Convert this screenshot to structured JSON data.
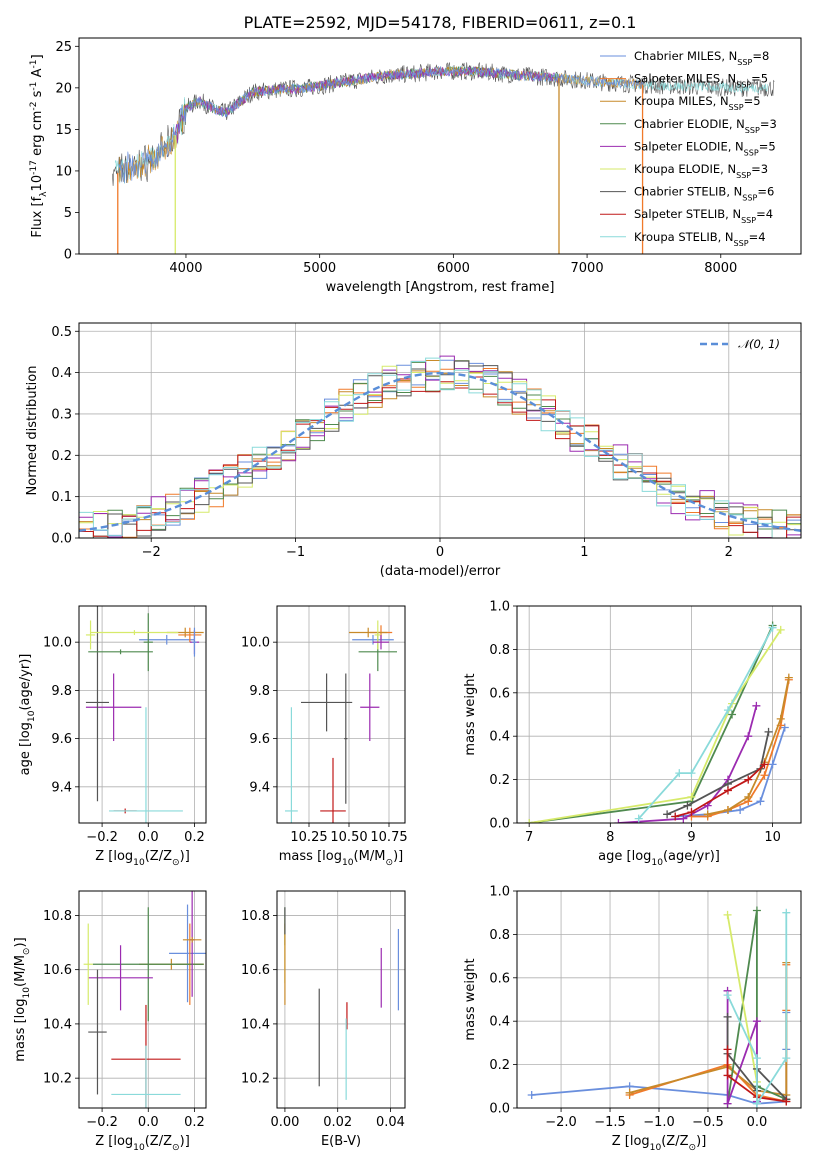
{
  "title": "PLATE=2592, MJD=54178, FIBERID=0611, z=0.1",
  "series_colors": {
    "Chabrier MILES": "#6a8fdd",
    "Salpeter MILES": "#f07a2a",
    "Kroupa MILES": "#c78a2a",
    "Chabrier ELODIE": "#4f8a4f",
    "Salpeter ELODIE": "#9b2bb0",
    "Kroupa ELODIE": "#d6ea6a",
    "Chabrier STELIB": "#555555",
    "Salpeter STELIB": "#c01818",
    "Kroupa STELIB": "#8adada"
  },
  "chart_data": [
    {
      "id": "spectrum",
      "type": "line",
      "title": "PLATE=2592, MJD=54178, FIBERID=0611, z=0.1",
      "xlabel": "wavelength [Angstrom, rest frame]",
      "ylabel": "Flux [f$_\\lambda$10$^{-17}$ erg cm$^{-2}$ s$^{-1}$ A$^{-1}$]",
      "xlim": [
        3200,
        8600
      ],
      "ylim": [
        0,
        26
      ],
      "xticks": [
        4000,
        5000,
        6000,
        7000,
        8000
      ],
      "yticks": [
        0,
        5,
        10,
        15,
        20,
        25
      ],
      "grid": false,
      "legend_position": "top-right",
      "legend": [
        "Chabrier MILES, N$_{SSP}$=8",
        "Salpeter MILES, N$_{SSP}$=5",
        "Kroupa MILES, N$_{SSP}$=5",
        "Chabrier ELODIE, N$_{SSP}$=3",
        "Salpeter ELODIE, N$_{SSP}$=5",
        "Kroupa ELODIE, N$_{SSP}$=3",
        "Chabrier STELIB, N$_{SSP}$=6",
        "Salpeter STELIB, N$_{SSP}$=4",
        "Kroupa STELIB, N$_{SSP}$=4"
      ],
      "continuum": {
        "x": [
          3450,
          3600,
          3700,
          3800,
          3900,
          4000,
          4100,
          4200,
          4300,
          4500,
          4700,
          4900,
          5100,
          5300,
          5500,
          5700,
          5900,
          6100,
          6300,
          6500,
          6700,
          6900,
          7100,
          7300,
          7500,
          7700,
          7900,
          8100,
          8300
        ],
        "y": [
          9.5,
          10.5,
          11,
          12,
          13.5,
          17.5,
          18.5,
          17.5,
          17,
          19.5,
          19.8,
          20,
          20.5,
          21,
          21.5,
          21.7,
          22,
          22,
          21.8,
          21.5,
          21.3,
          21,
          20.7,
          20.5,
          20.3,
          20.2,
          20.1,
          20,
          20
        ]
      },
      "drops": [
        {
          "series": "Salpeter MILES",
          "x": 3490
        },
        {
          "series": "Kroupa ELODIE",
          "x": 3920
        },
        {
          "series": "Kroupa MILES",
          "x": 6790
        },
        {
          "series": "Salpeter MILES",
          "x": 7415
        }
      ]
    },
    {
      "id": "residuals",
      "type": "histogram",
      "xlabel": "(data-model)/error",
      "ylabel": "Normed distribution",
      "xlim": [
        -2.5,
        2.5
      ],
      "ylim": [
        0,
        0.52
      ],
      "xticks": [
        -2,
        -1,
        0,
        1,
        2
      ],
      "yticks": [
        0.0,
        0.1,
        0.2,
        0.3,
        0.4,
        0.5
      ],
      "grid": true,
      "legend_position": "top-right",
      "legend": [
        "$\\mathcal{N}(0, 1)$"
      ],
      "bin_width": 0.1
    },
    {
      "id": "age-vs-Z",
      "type": "scatter",
      "xlabel": "Z [log$_{10}$(Z/Z$_\\odot$)]",
      "ylabel": "age  [log$_{10}$(age/yr)]",
      "xlim": [
        -0.3,
        0.25
      ],
      "ylim": [
        9.25,
        10.15
      ],
      "xticks": [
        -0.2,
        0.0,
        0.2
      ],
      "yticks": [
        9.4,
        9.6,
        9.8,
        10.0
      ],
      "grid": true,
      "points": [
        {
          "series": "Chabrier MILES",
          "x": 0.08,
          "y": 10.01,
          "xerr": 0.12,
          "yerr": 0.02
        },
        {
          "series": "Salpeter MILES",
          "x": 0.18,
          "y": 10.03,
          "xerr": 0.05,
          "yerr": 0.03
        },
        {
          "series": "Kroupa MILES",
          "x": 0.16,
          "y": 10.04,
          "xerr": 0.08,
          "yerr": 0.02
        },
        {
          "series": "Chabrier ELODIE",
          "x": 0.0,
          "y": 10.0,
          "xerr": 0.02,
          "yerr": 0.12
        },
        {
          "series": "Salpeter ELODIE",
          "x": -0.15,
          "y": 9.73,
          "xerr": 0.12,
          "yerr": 0.14
        },
        {
          "series": "Kroupa ELODIE",
          "x": -0.25,
          "y": 10.03,
          "xerr": 0.02,
          "yerr": 0.06
        },
        {
          "series": "Chabrier STELIB",
          "x": -0.22,
          "y": 9.75,
          "xerr": 0.05,
          "yerr": 0.41
        },
        {
          "series": "Salpeter STELIB",
          "x": -0.1,
          "y": 9.3,
          "xerr": 0.05,
          "yerr": 0.01
        },
        {
          "series": "Kroupa STELIB",
          "x": -0.01,
          "y": 9.3,
          "xerr": 0.16,
          "yerr": 0.43
        },
        {
          "series": "Chabrier ELODIE",
          "x": -0.12,
          "y": 9.96,
          "xerr": 0.14,
          "yerr": 0.01
        },
        {
          "series": "Salpeter ELODIE",
          "x": 0.2,
          "y": 10.0,
          "xerr": 0.02,
          "yerr": 0.05
        },
        {
          "series": "Kroupa ELODIE",
          "x": -0.06,
          "y": 10.04,
          "xerr": 0.19,
          "yerr": 0.01
        },
        {
          "series": "Chabrier MILES",
          "x": 0.2,
          "y": 10.0,
          "xerr": 0.01,
          "yerr": 0.06
        }
      ]
    },
    {
      "id": "age-vs-mass",
      "type": "scatter",
      "xlabel": "mass [log$_{10}$(M/M$_\\odot$)]",
      "ylabel": "",
      "xlim": [
        10.05,
        10.85
      ],
      "ylim": [
        9.25,
        10.15
      ],
      "xticks": [
        10.25,
        10.5,
        10.75
      ],
      "yticks": [
        9.4,
        9.6,
        9.8,
        10.0
      ],
      "grid": true,
      "points": [
        {
          "series": "Chabrier MILES",
          "x": 10.65,
          "y": 10.01,
          "xerr": 0.13,
          "yerr": 0.02
        },
        {
          "series": "Salpeter MILES",
          "x": 10.7,
          "y": 10.04,
          "xerr": 0.07,
          "yerr": 0.03
        },
        {
          "series": "Kroupa MILES",
          "x": 10.62,
          "y": 10.04,
          "xerr": 0.12,
          "yerr": 0.02
        },
        {
          "series": "Chabrier ELODIE",
          "x": 10.68,
          "y": 9.96,
          "xerr": 0.12,
          "yerr": 0.08
        },
        {
          "series": "Salpeter ELODIE",
          "x": 10.63,
          "y": 9.73,
          "xerr": 0.06,
          "yerr": 0.14
        },
        {
          "series": "Kroupa ELODIE",
          "x": 10.68,
          "y": 10.03,
          "xerr": 0.02,
          "yerr": 0.06
        },
        {
          "series": "Chabrier STELIB",
          "x": 10.36,
          "y": 9.75,
          "xerr": 0.16,
          "yerr": 0.12
        },
        {
          "series": "Salpeter STELIB",
          "x": 10.4,
          "y": 9.3,
          "xerr": 0.08,
          "yerr": 0.22
        },
        {
          "series": "Kroupa STELIB",
          "x": 10.14,
          "y": 9.3,
          "xerr": 0.04,
          "yerr": 0.43
        },
        {
          "series": "Chabrier STELIB",
          "x": 10.48,
          "y": 9.6,
          "xerr": 0.01,
          "yerr": 0.27
        },
        {
          "series": "Salpeter ELODIE",
          "x": 10.7,
          "y": 10.0,
          "xerr": 0.05,
          "yerr": 0.03
        }
      ]
    },
    {
      "id": "mass-weight-vs-age",
      "type": "line",
      "xlabel": "age  [log$_{10}$(age/yr)]",
      "ylabel": "mass weight",
      "xlim": [
        6.85,
        10.35
      ],
      "ylim": [
        0,
        1
      ],
      "xticks": [
        7,
        8,
        9,
        10
      ],
      "yticks": [
        0.0,
        0.2,
        0.4,
        0.6,
        0.8,
        1.0
      ],
      "grid": true,
      "series": [
        {
          "name": "Chabrier MILES",
          "x": [
            8.8,
            9.2,
            9.6,
            9.85,
            10.0,
            10.15
          ],
          "y": [
            0.03,
            0.04,
            0.06,
            0.1,
            0.27,
            0.44
          ]
        },
        {
          "name": "Salpeter MILES",
          "x": [
            9.0,
            9.2,
            9.45,
            9.7,
            9.9,
            10.1,
            10.2
          ],
          "y": [
            0.03,
            0.03,
            0.06,
            0.1,
            0.22,
            0.45,
            0.66
          ]
        },
        {
          "name": "Kroupa MILES",
          "x": [
            9.2,
            9.45,
            9.7,
            9.9,
            10.1,
            10.2
          ],
          "y": [
            0.04,
            0.06,
            0.12,
            0.28,
            0.48,
            0.67
          ]
        },
        {
          "name": "Chabrier ELODIE",
          "x": [
            7.0,
            9.0,
            9.5,
            10.0
          ],
          "y": [
            0.0,
            0.1,
            0.5,
            0.91
          ]
        },
        {
          "name": "Salpeter ELODIE",
          "x": [
            8.1,
            8.9,
            9.2,
            9.45,
            9.7,
            9.8
          ],
          "y": [
            0.0,
            0.02,
            0.08,
            0.2,
            0.4,
            0.54
          ]
        },
        {
          "name": "Kroupa ELODIE",
          "x": [
            7.0,
            9.0,
            9.5,
            10.1
          ],
          "y": [
            0.0,
            0.12,
            0.55,
            0.89
          ]
        },
        {
          "name": "Chabrier STELIB",
          "x": [
            8.7,
            8.95,
            9.45,
            9.85,
            9.95
          ],
          "y": [
            0.04,
            0.08,
            0.18,
            0.25,
            0.42
          ]
        },
        {
          "name": "Salpeter STELIB",
          "x": [
            8.8,
            9.0,
            9.45,
            9.7,
            9.9
          ],
          "y": [
            0.03,
            0.05,
            0.15,
            0.2,
            0.27
          ]
        },
        {
          "name": "Kroupa STELIB",
          "x": [
            8.35,
            8.85,
            9.0,
            9.45,
            10.0
          ],
          "y": [
            0.02,
            0.23,
            0.23,
            0.52,
            0.9
          ]
        }
      ]
    },
    {
      "id": "mass-vs-Z",
      "type": "scatter",
      "xlabel": "Z [log$_{10}$(Z/Z$_\\odot$)]",
      "ylabel": "mass [log$_{10}$(M/M$_\\odot$)]",
      "xlim": [
        -0.3,
        0.25
      ],
      "ylim": [
        10.09,
        10.89
      ],
      "xticks": [
        -0.2,
        0.0,
        0.2
      ],
      "yticks": [
        10.2,
        10.4,
        10.6,
        10.8
      ],
      "grid": true,
      "points": [
        {
          "series": "Chabrier MILES",
          "x": 0.17,
          "y": 10.66,
          "xerr": 0.08,
          "yerr": 0.18
        },
        {
          "series": "Salpeter MILES",
          "x": 0.18,
          "y": 10.62,
          "xerr": 0.06,
          "yerr": 0.15
        },
        {
          "series": "Kroupa MILES",
          "x": 0.1,
          "y": 10.62,
          "xerr": 0.14,
          "yerr": 0.02
        },
        {
          "series": "Chabrier ELODIE",
          "x": 0.0,
          "y": 10.62,
          "xerr": 0.24,
          "yerr": 0.21
        },
        {
          "series": "Salpeter ELODIE",
          "x": -0.12,
          "y": 10.57,
          "xerr": 0.14,
          "yerr": 0.12
        },
        {
          "series": "Kroupa ELODIE",
          "x": -0.26,
          "y": 10.62,
          "xerr": 0.02,
          "yerr": 0.15
        },
        {
          "series": "Chabrier STELIB",
          "x": -0.22,
          "y": 10.37,
          "xerr": 0.04,
          "yerr": 0.23
        },
        {
          "series": "Salpeter STELIB",
          "x": -0.01,
          "y": 10.27,
          "xerr": 0.15,
          "yerr": 0.2
        },
        {
          "series": "Kroupa STELIB",
          "x": -0.01,
          "y": 10.14,
          "xerr": 0.15,
          "yerr": 0.18
        },
        {
          "series": "Salpeter ELODIE",
          "x": 0.19,
          "y": 10.71,
          "xerr": 0.01,
          "yerr": 0.21
        },
        {
          "series": "Kroupa MILES",
          "x": 0.19,
          "y": 10.71,
          "xerr": 0.04,
          "yerr": 0.01
        }
      ]
    },
    {
      "id": "mass-vs-EBV",
      "type": "scatter",
      "xlabel": "E(B-V)",
      "ylabel": "",
      "xlim": [
        -0.003,
        0.0455
      ],
      "ylim": [
        10.09,
        10.89
      ],
      "xticks": [
        0.0,
        0.02,
        0.04
      ],
      "yticks": [
        10.2,
        10.4,
        10.6,
        10.8
      ],
      "grid": true,
      "points": [
        {
          "series": "Chabrier MILES",
          "x": 0.043,
          "y": 10.6,
          "xerr": 0,
          "yerr": 0.15
        },
        {
          "series": "Salpeter ELODIE",
          "x": 0.0365,
          "y": 10.57,
          "xerr": 0,
          "yerr": 0.11
        },
        {
          "series": "Salpeter STELIB",
          "x": 0.0235,
          "y": 10.43,
          "xerr": 0,
          "yerr": 0.05
        },
        {
          "series": "Kroupa STELIB",
          "x": 0.0232,
          "y": 10.27,
          "xerr": 0,
          "yerr": 0.15
        },
        {
          "series": "Chabrier STELIB",
          "x": 0.013,
          "y": 10.35,
          "xerr": 0,
          "yerr": 0.18
        },
        {
          "series": "Chabrier ELODIE",
          "x": 0.0,
          "y": 10.76,
          "xerr": 0,
          "yerr": 0.07
        },
        {
          "series": "Kroupa ELODIE",
          "x": 0.0,
          "y": 10.67,
          "xerr": 0,
          "yerr": 0.12
        },
        {
          "series": "Kroupa MILES",
          "x": 0.0,
          "y": 10.62,
          "xerr": 0,
          "yerr": 0.15
        },
        {
          "series": "Chabrier STELIB",
          "x": 0.0,
          "y": 10.78,
          "xerr": 0,
          "yerr": 0.05
        }
      ]
    },
    {
      "id": "mass-weight-vs-Z",
      "type": "line",
      "xlabel": "Z [log$_{10}$(Z/Z$_\\odot$)]",
      "ylabel": "mass weight",
      "xlim": [
        -2.45,
        0.45
      ],
      "ylim": [
        0,
        1
      ],
      "xticks": [
        -2.0,
        -1.5,
        -1.0,
        -0.5,
        0.0
      ],
      "yticks": [
        0.0,
        0.2,
        0.4,
        0.6,
        0.8,
        1.0
      ],
      "grid": true,
      "series": [
        {
          "name": "Chabrier MILES",
          "x": [
            -2.3,
            -1.3,
            -0.3,
            0.0,
            0.3,
            0.3,
            0.3
          ],
          "y": [
            0.06,
            0.1,
            0.06,
            0.02,
            0.03,
            0.27,
            0.44
          ]
        },
        {
          "name": "Salpeter MILES",
          "x": [
            -1.3,
            -0.3,
            0.0,
            0.3,
            0.3,
            0.3
          ],
          "y": [
            0.06,
            0.2,
            0.06,
            0.03,
            0.45,
            0.66
          ]
        },
        {
          "name": "Kroupa MILES",
          "x": [
            -1.3,
            -0.3,
            0.0,
            0.3,
            0.3
          ],
          "y": [
            0.07,
            0.19,
            0.08,
            0.06,
            0.67
          ]
        },
        {
          "name": "Chabrier ELODIE",
          "x": [
            -0.3,
            0.0,
            0.0,
            0.3
          ],
          "y": [
            0.02,
            0.91,
            0.1,
            0.04
          ]
        },
        {
          "name": "Salpeter ELODIE",
          "x": [
            -0.3,
            -0.3,
            0.0,
            0.0
          ],
          "y": [
            0.54,
            0.02,
            0.4,
            0.03
          ]
        },
        {
          "name": "Kroupa ELODIE",
          "x": [
            -0.3,
            0.0,
            0.0
          ],
          "y": [
            0.89,
            0.12,
            0.05
          ]
        },
        {
          "name": "Chabrier STELIB",
          "x": [
            -0.3,
            -0.3,
            0.0,
            0.0,
            0.3
          ],
          "y": [
            0.42,
            0.25,
            0.08,
            0.18,
            0.04
          ]
        },
        {
          "name": "Salpeter STELIB",
          "x": [
            -0.3,
            -0.3,
            0.0,
            0.3
          ],
          "y": [
            0.27,
            0.15,
            0.05,
            0.03
          ]
        },
        {
          "name": "Kroupa STELIB",
          "x": [
            -0.3,
            0.0,
            0.0,
            0.3,
            0.3
          ],
          "y": [
            0.52,
            0.23,
            0.02,
            0.23,
            0.9
          ]
        }
      ]
    }
  ]
}
